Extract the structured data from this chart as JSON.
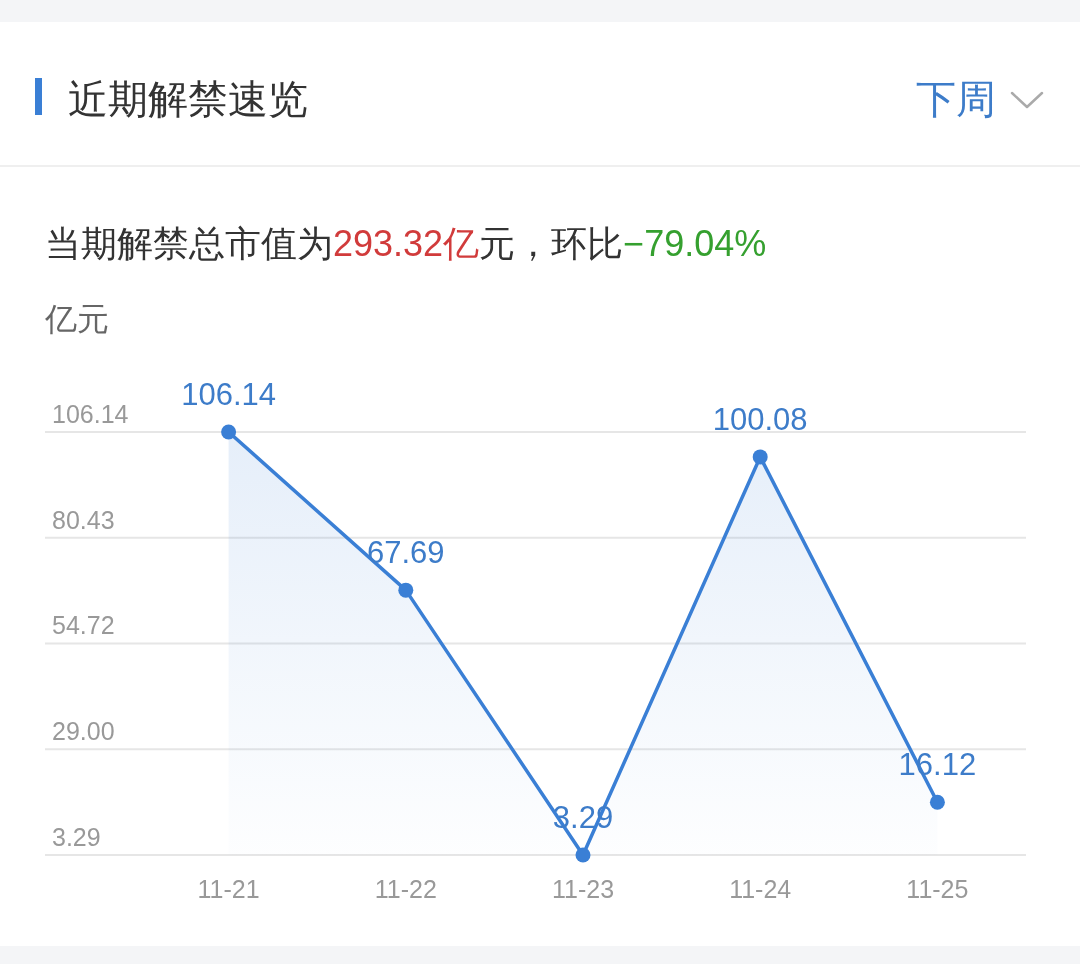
{
  "chart_data": {
    "type": "area",
    "title": "近期解禁速览",
    "subtitle": "当期解禁总市值为293.32亿元，环比−79.04%",
    "ylabel": "亿元",
    "annotations": [
      "下周"
    ],
    "categories": [
      "11-21",
      "11-22",
      "11-23",
      "11-24",
      "11-25"
    ],
    "series": [
      {
        "color": "#3a7fd5",
        "values": [
          106.14,
          67.69,
          3.29,
          100.08,
          16.12
        ]
      }
    ],
    "ylim": [
      3.29,
      106.14
    ],
    "yticks": [
      3.29,
      {
        "value": 29,
        "label": "29.00"
      },
      54.72,
      80.43,
      106.14
    ],
    "grid": "y",
    "marker": "circle",
    "data_labels": true
  }
}
